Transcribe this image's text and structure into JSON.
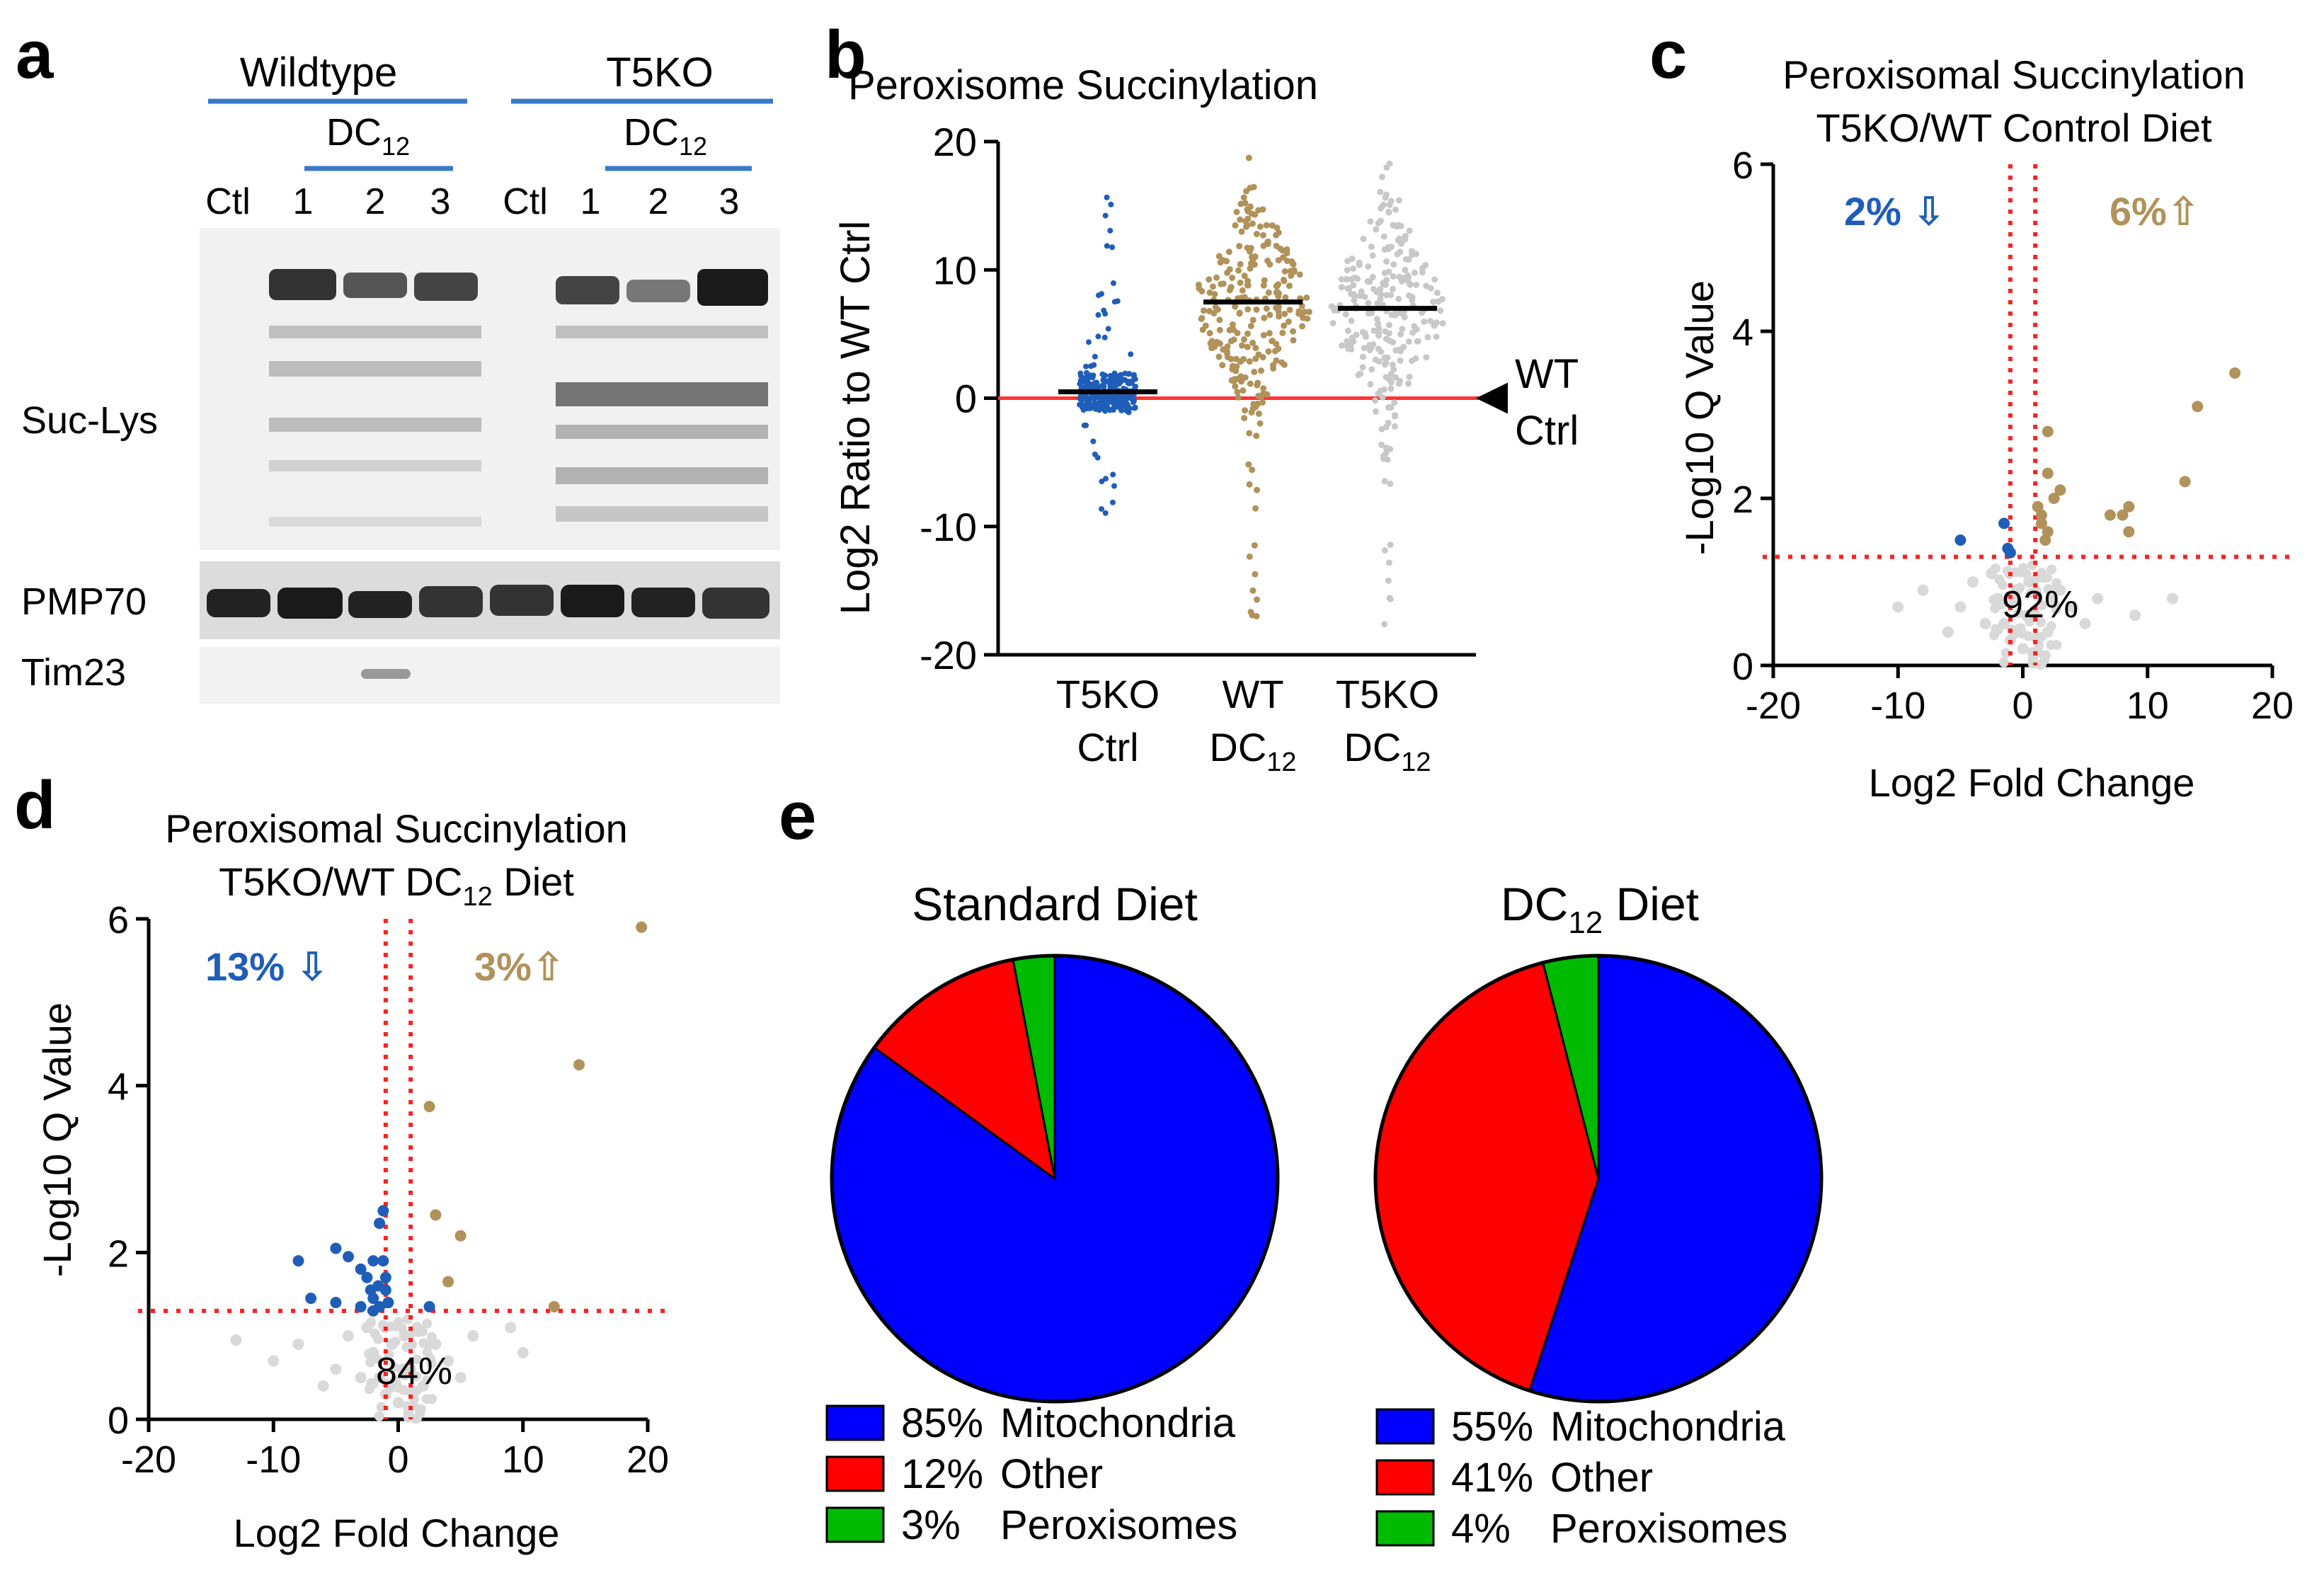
{
  "panel_a": {
    "letter": "a",
    "groups": [
      "Wildtype",
      "T5KO"
    ],
    "treatment": "DC",
    "treatment_sub": "12",
    "lanes": [
      "Ctl",
      "1",
      "2",
      "3",
      "Ctl",
      "1",
      "2",
      "3"
    ],
    "blots": [
      "Suc-Lys",
      "PMP70",
      "Tim23"
    ]
  },
  "panel_b": {
    "letter": "b"
  },
  "panel_c": {
    "letter": "c"
  },
  "panel_d": {
    "letter": "d"
  },
  "panel_e": {
    "letter": "e"
  },
  "chart_data": [
    {
      "id": "b",
      "type": "scatter",
      "title": "Peroxisome Succinylation",
      "ylabel": "Log2 Ratio to WT Ctrl",
      "ylim": [
        -20,
        20
      ],
      "yticks": [
        -20,
        -10,
        0,
        10,
        20
      ],
      "reference_line": {
        "y": 0,
        "color": "#ff3333",
        "label_line1": "WT",
        "label_line2": "Ctrl"
      },
      "categories": [
        {
          "line1": "T5KO",
          "line2": "Ctrl",
          "sub": ""
        },
        {
          "line1": "WT",
          "line2": "DC",
          "sub": "12"
        },
        {
          "line1": "T5KO",
          "line2": "DC",
          "sub": "12"
        }
      ],
      "series": [
        {
          "name": "T5KO Ctrl",
          "color": "#1f5eb8",
          "median": 0.5,
          "range": [
            -9,
            17
          ]
        },
        {
          "name": "WT DC12",
          "color": "#b0925a",
          "median": 7.5,
          "range": [
            -17,
            19
          ]
        },
        {
          "name": "T5KO DC12",
          "color": "#c8c8c8",
          "median": 7,
          "range": [
            -18,
            19
          ]
        }
      ]
    },
    {
      "id": "c",
      "type": "scatter",
      "title_line1": "Peroxisomal Succinylation",
      "title_line2": "T5KO/WT Control Diet",
      "xlabel": "Log2 Fold Change",
      "ylabel": "-Log10 Q Value",
      "xlim": [
        -20,
        20
      ],
      "ylim": [
        0,
        6
      ],
      "xticks": [
        -20,
        -10,
        0,
        10,
        20
      ],
      "yticks": [
        0,
        2,
        4,
        6
      ],
      "threshold_y": 1.3,
      "down_label": "2% ⇩",
      "up_label": "6%⇧",
      "ns_label": "92%",
      "down_color": "#1f5eb8",
      "up_color": "#b0925a",
      "ns_color": "#d9d9d9",
      "up_points": [
        [
          17,
          3.5
        ],
        [
          14,
          3.1
        ],
        [
          13,
          2.2
        ],
        [
          8.5,
          1.9
        ],
        [
          8,
          1.8
        ],
        [
          7,
          1.8
        ],
        [
          8.5,
          1.6
        ],
        [
          2,
          2.8
        ],
        [
          2,
          2.3
        ],
        [
          3,
          2.1
        ],
        [
          2.5,
          2.0
        ],
        [
          1.5,
          1.8
        ],
        [
          2,
          1.6
        ],
        [
          1.5,
          1.7
        ],
        [
          1.2,
          1.9
        ],
        [
          1.8,
          1.5
        ]
      ],
      "down_points": [
        [
          -5,
          1.5
        ],
        [
          -1.5,
          1.7
        ],
        [
          -1.2,
          1.4
        ],
        [
          -1,
          1.35
        ]
      ],
      "ns_points": [
        [
          -8,
          0.9
        ],
        [
          -5,
          0.7
        ],
        [
          -3,
          0.5
        ],
        [
          -2,
          0.8
        ],
        [
          -1,
          0.3
        ],
        [
          -0.5,
          0.9
        ],
        [
          0.5,
          1.0
        ],
        [
          1,
          0.6
        ],
        [
          2,
          0.4
        ],
        [
          3,
          0.9
        ],
        [
          4,
          0.7
        ],
        [
          6,
          0.8
        ],
        [
          -6,
          0.4
        ],
        [
          -2.5,
          1.1
        ],
        [
          1.5,
          1.1
        ],
        [
          -1.5,
          0.5
        ],
        [
          0,
          0.2
        ],
        [
          0.3,
          0.6
        ],
        [
          -4,
          1.0
        ],
        [
          5,
          0.5
        ],
        [
          9,
          0.6
        ],
        [
          12,
          0.8
        ],
        [
          -10,
          0.7
        ]
      ]
    },
    {
      "id": "d",
      "type": "scatter",
      "title_line1": "Peroxisomal Succinylation",
      "title_line2_prefix": "T5KO/WT DC",
      "title_line2_sub": "12",
      "title_line2_suffix": " Diet",
      "xlabel": "Log2 Fold Change",
      "ylabel": "-Log10 Q Value",
      "xlim": [
        -20,
        20
      ],
      "ylim": [
        0,
        6
      ],
      "xticks": [
        -20,
        -10,
        0,
        10,
        20
      ],
      "yticks": [
        0,
        2,
        4,
        6
      ],
      "threshold_y": 1.3,
      "down_label": "13% ⇩",
      "up_label": "3%⇧",
      "ns_label": "84%",
      "down_color": "#1f5eb8",
      "up_color": "#b0925a",
      "ns_color": "#d9d9d9",
      "up_points": [
        [
          19.5,
          5.9
        ],
        [
          14.5,
          4.25
        ],
        [
          2.5,
          3.75
        ],
        [
          3,
          2.45
        ],
        [
          5,
          2.2
        ],
        [
          4,
          1.65
        ],
        [
          12.5,
          1.35
        ]
      ],
      "down_points": [
        [
          -8,
          1.9
        ],
        [
          -5,
          2.05
        ],
        [
          -4,
          1.95
        ],
        [
          -3,
          1.8
        ],
        [
          -2.5,
          1.7
        ],
        [
          -2,
          1.9
        ],
        [
          -1.5,
          2.35
        ],
        [
          -1.2,
          2.5
        ],
        [
          -1.6,
          1.6
        ],
        [
          -1,
          1.55
        ],
        [
          -2,
          1.45
        ],
        [
          -1.5,
          1.35
        ],
        [
          -7,
          1.45
        ],
        [
          -5,
          1.4
        ],
        [
          -3,
          1.35
        ],
        [
          -2,
          1.3
        ],
        [
          -1,
          1.7
        ],
        [
          -0.8,
          1.4
        ],
        [
          2.5,
          1.35
        ],
        [
          -1.2,
          1.9
        ],
        [
          -2.2,
          1.55
        ]
      ],
      "ns_points": [
        [
          -13,
          0.95
        ],
        [
          -8,
          0.9
        ],
        [
          -5,
          0.6
        ],
        [
          -3,
          0.5
        ],
        [
          -2,
          0.8
        ],
        [
          -1,
          0.3
        ],
        [
          -0.5,
          0.9
        ],
        [
          0.5,
          1.0
        ],
        [
          1,
          0.6
        ],
        [
          2,
          0.4
        ],
        [
          3,
          0.9
        ],
        [
          4,
          0.7
        ],
        [
          6,
          1.0
        ],
        [
          -6,
          0.4
        ],
        [
          -2.5,
          1.1
        ],
        [
          1.5,
          1.1
        ],
        [
          -1.5,
          0.5
        ],
        [
          0,
          0.2
        ],
        [
          0.3,
          0.6
        ],
        [
          -4,
          1.0
        ],
        [
          5,
          0.5
        ],
        [
          9,
          1.1
        ],
        [
          10,
          0.8
        ],
        [
          -10,
          0.7
        ]
      ]
    },
    {
      "id": "e1",
      "type": "pie",
      "title": "Standard Diet",
      "slices": [
        {
          "label": "Mitochondria",
          "value": 85,
          "pct": "85%",
          "color": "#0000ff"
        },
        {
          "label": "Other",
          "value": 12,
          "pct": "12%",
          "color": "#ff0000"
        },
        {
          "label": "Peroxisomes",
          "value": 3,
          "pct": "3%",
          "color": "#00bb00"
        }
      ]
    },
    {
      "id": "e2",
      "type": "pie",
      "title_prefix": "DC",
      "title_sub": "12",
      "title_suffix": " Diet",
      "slices": [
        {
          "label": "Mitochondria",
          "value": 55,
          "pct": "55%",
          "color": "#0000ff"
        },
        {
          "label": "Other",
          "value": 41,
          "pct": "41%",
          "color": "#ff0000"
        },
        {
          "label": "Peroxisomes",
          "value": 4,
          "pct": "4%",
          "color": "#00bb00"
        }
      ]
    }
  ]
}
